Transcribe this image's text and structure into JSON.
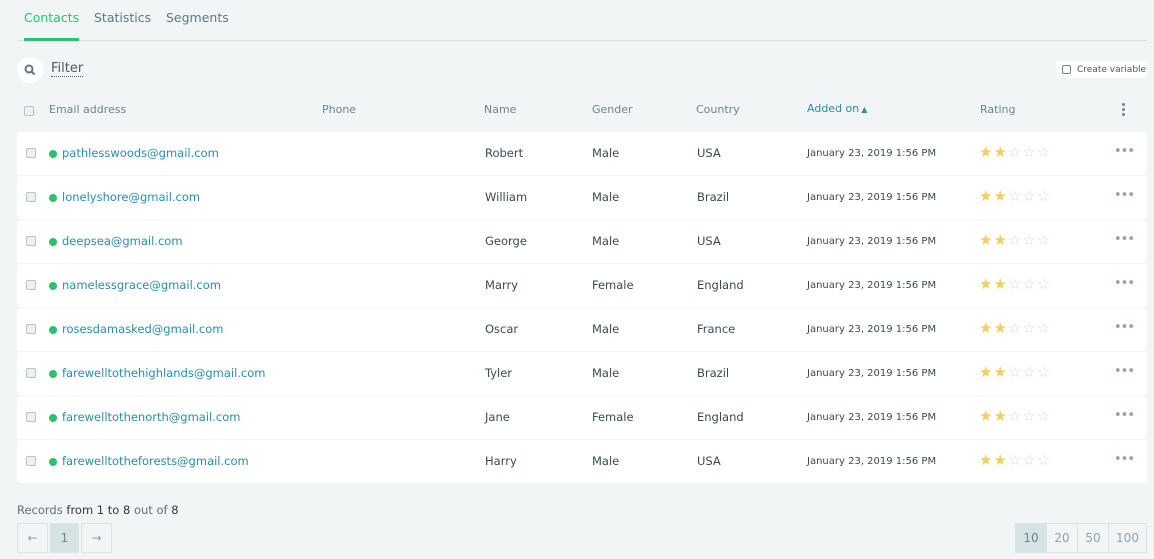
{
  "tabs": [
    {
      "label": "Contacts",
      "active": true
    },
    {
      "label": "Statistics"
    },
    {
      "label": "Segments"
    }
  ],
  "toolbar": {
    "filter_label": "Filter",
    "create_variable_label": "Create variable"
  },
  "columns": {
    "email": "Email address",
    "phone": "Phone",
    "name": "Name",
    "gender": "Gender",
    "country": "Country",
    "added_on": "Added on",
    "rating": "Rating"
  },
  "rows": [
    {
      "email": "pathlesswoods@gmail.com",
      "phone": "",
      "name": "Robert",
      "gender": "Male",
      "country": "USA",
      "added": "January 23, 2019 1:56 PM",
      "rating": 2
    },
    {
      "email": "lonelyshore@gmail.com",
      "phone": "",
      "name": "William",
      "gender": "Male",
      "country": "Brazil",
      "added": "January 23, 2019 1:56 PM",
      "rating": 2
    },
    {
      "email": "deepsea@gmail.com",
      "phone": "",
      "name": "George",
      "gender": "Male",
      "country": "USA",
      "added": "January 23, 2019 1:56 PM",
      "rating": 2
    },
    {
      "email": "namelessgrace@gmail.com",
      "phone": "",
      "name": "Marry",
      "gender": "Female",
      "country": "England",
      "added": "January 23, 2019 1:56 PM",
      "rating": 2
    },
    {
      "email": "rosesdamasked@gmail.com",
      "phone": "",
      "name": "Oscar",
      "gender": "Male",
      "country": "France",
      "added": "January 23, 2019 1:56 PM",
      "rating": 2
    },
    {
      "email": "farewelltothehighlands@gmail.com",
      "phone": "",
      "name": "Tyler",
      "gender": "Male",
      "country": "Brazil",
      "added": "January 23, 2019 1:56 PM",
      "rating": 2
    },
    {
      "email": "farewelltothenorth@gmail.com",
      "phone": "",
      "name": "Jane",
      "gender": "Female",
      "country": "England",
      "added": "January 23, 2019 1:56 PM",
      "rating": 2
    },
    {
      "email": "farewelltotheforests@gmail.com",
      "phone": "",
      "name": "Harry",
      "gender": "Male",
      "country": "USA",
      "added": "January 23, 2019 1:56 PM",
      "rating": 2
    }
  ],
  "footer": {
    "records_prefix": "Records",
    "records_range": "from 1 to 8",
    "records_outof": "out of",
    "records_total": "8",
    "prev": "←",
    "page": "1",
    "next": "→",
    "page_sizes": [
      "10",
      "20",
      "50",
      "100"
    ],
    "selected_page_size": "10"
  },
  "colors": {
    "accent": "#2fbf71",
    "link": "#2a8ea8",
    "star": "#f0cf5d"
  }
}
